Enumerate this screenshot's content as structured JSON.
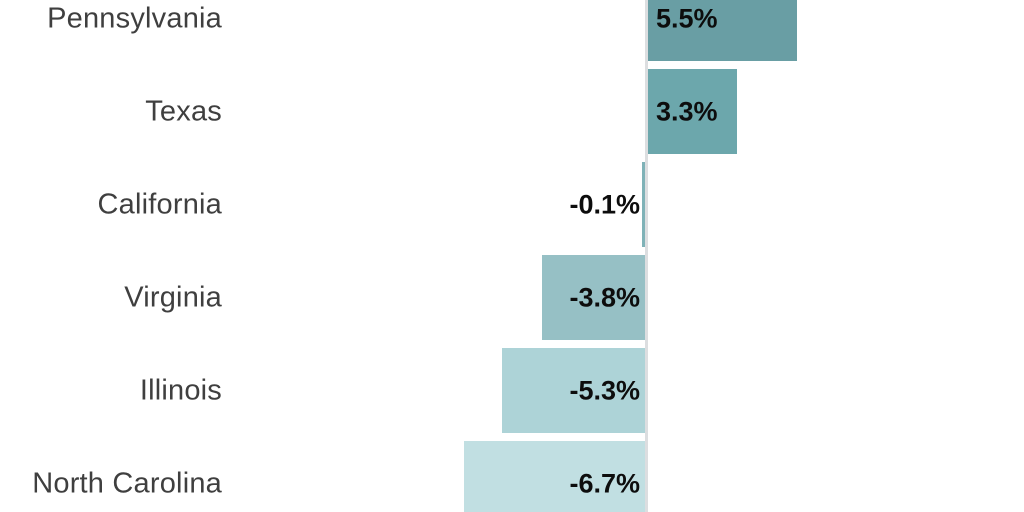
{
  "chart_data": {
    "type": "bar",
    "orientation": "horizontal",
    "title": "",
    "xlabel": "",
    "ylabel": "",
    "categories": [
      "Pennsylvania",
      "Texas",
      "California",
      "Virginia",
      "Illinois",
      "North Carolina"
    ],
    "values": [
      5.5,
      3.3,
      -0.1,
      -3.8,
      -5.3,
      -6.7
    ],
    "value_labels": [
      "5.5%",
      "3.3%",
      "-0.1%",
      "-3.8%",
      "-5.3%",
      "-6.7%"
    ],
    "unit": "%",
    "baseline": 0,
    "xlim": [
      -8.3,
      7.0
    ],
    "grid": false,
    "legend": "none",
    "bar_colors": [
      "#699ea4",
      "#6ca7ac",
      "#7fb2b7",
      "#96c0c5",
      "#add3d7",
      "#c1dfe2"
    ],
    "colors": {
      "background": "#ffffff",
      "zero_line": "#dcdee0",
      "category_label": "#3f3f3f",
      "value_label": "#0d0d0d"
    },
    "notes": "Diverging horizontal bar chart; positive bars extend right of the zero line, negative bars extend left; value labels anchored at the zero baseline; chart vertically cropped at top and bottom"
  }
}
